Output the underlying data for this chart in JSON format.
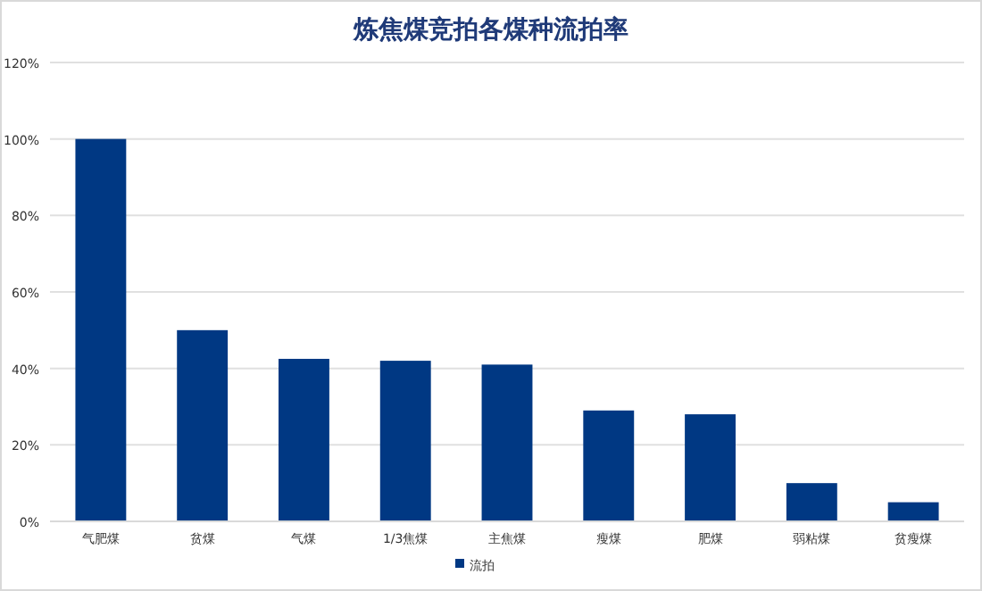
{
  "chart_data": {
    "type": "bar",
    "title": "炼焦煤竞拍各煤种流拍率",
    "categories": [
      "气肥煤",
      "贫煤",
      "气煤",
      "1/3焦煤",
      "主焦煤",
      "瘦煤",
      "肥煤",
      "弱粘煤",
      "贫瘦煤"
    ],
    "series": [
      {
        "name": "流拍",
        "color": "#003883",
        "values": [
          100,
          50,
          42.5,
          42,
          41,
          29,
          28,
          10,
          5
        ]
      }
    ],
    "ylim": [
      0,
      120
    ],
    "yticks": [
      {
        "value": 0,
        "label": "0%"
      },
      {
        "value": 20,
        "label": "20%"
      },
      {
        "value": 40,
        "label": "40%"
      },
      {
        "value": 60,
        "label": "60%"
      },
      {
        "value": 80,
        "label": "80%"
      },
      {
        "value": 100,
        "label": "100%"
      },
      {
        "value": 120,
        "label": "120%"
      }
    ],
    "grid": "y",
    "legend": "bottom"
  }
}
